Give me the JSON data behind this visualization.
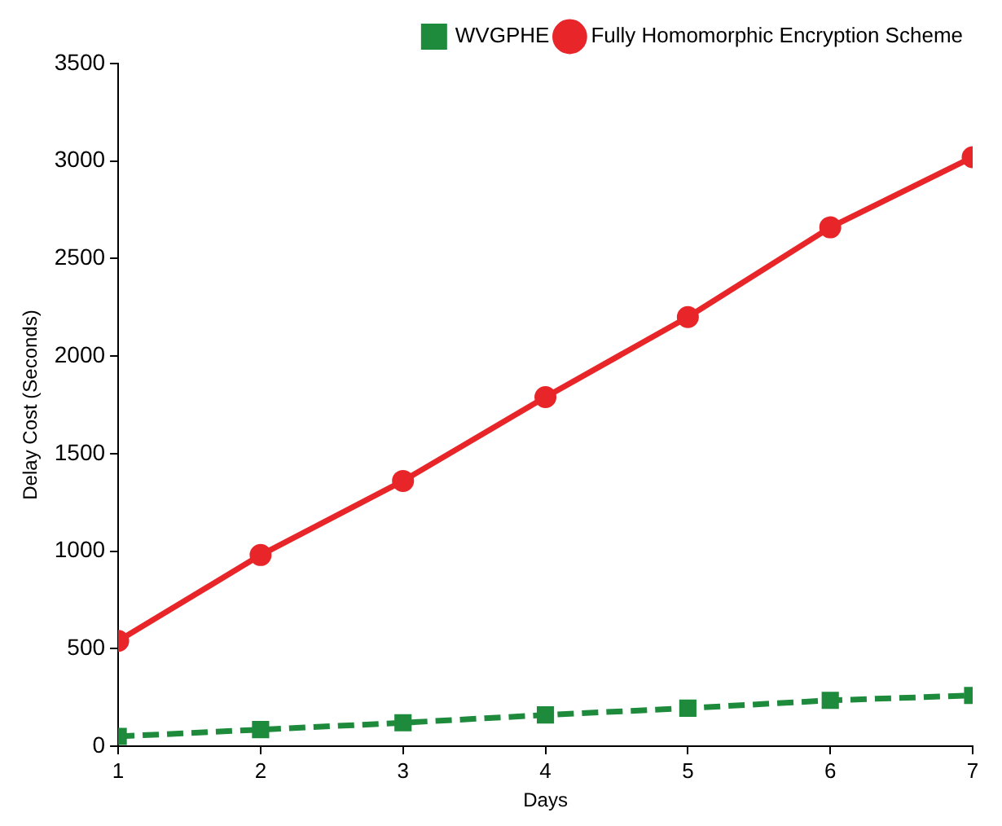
{
  "chart_data": {
    "type": "line",
    "xlabel": "Days",
    "ylabel": "Delay Cost (Seconds)",
    "x": [
      1,
      2,
      3,
      4,
      5,
      6,
      7
    ],
    "series": [
      {
        "name": "WVGPHE",
        "color": "#1e8b3c",
        "values": [
          50,
          85,
          120,
          160,
          195,
          235,
          260
        ],
        "marker": "square",
        "line_style": "dashed"
      },
      {
        "name": "Fully Homomorphic Encryption Scheme",
        "color": "#e8262a",
        "values": [
          540,
          980,
          1360,
          1790,
          2200,
          2660,
          3020
        ],
        "marker": "circle",
        "line_style": "solid"
      }
    ],
    "xlim": [
      1,
      7
    ],
    "xticks": [
      1,
      2,
      3,
      4,
      5,
      6,
      7
    ],
    "ylim": [
      0,
      3500
    ],
    "yticks": [
      0,
      500,
      1000,
      1500,
      2000,
      2500,
      3000,
      3500
    ],
    "grid": false,
    "legend": "top right"
  }
}
